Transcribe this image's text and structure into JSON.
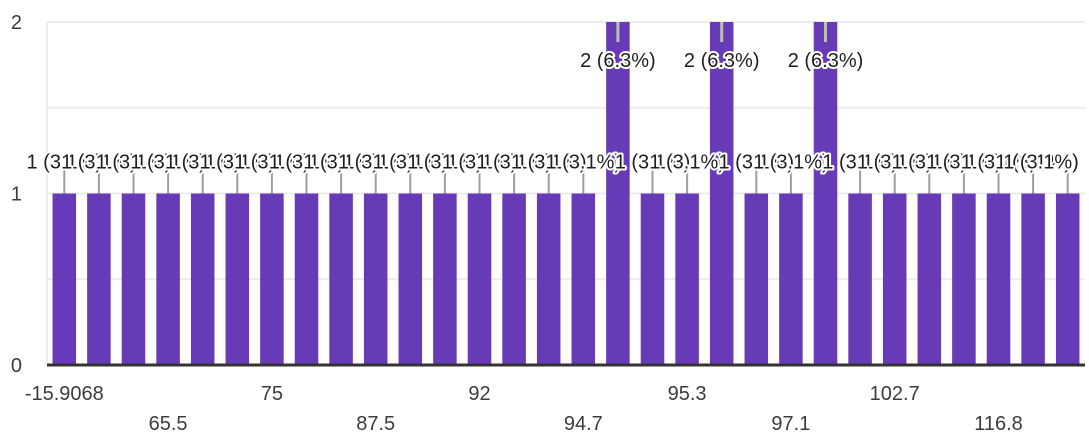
{
  "chart_data": {
    "type": "bar",
    "categories": [
      "-15.9068",
      "65.5",
      "65.5",
      "65.5",
      "65.5",
      "75",
      "75",
      "75",
      "87.5",
      "87.5",
      "92",
      "92",
      "92",
      "94.7",
      "94.7",
      "94.7",
      "94.7",
      "95.3",
      "95.3",
      "95.3",
      "97.1",
      "97.1",
      "97.1",
      "102.7",
      "102.7",
      "116.8",
      "116.8",
      "116.8",
      "116.8",
      "116.8"
    ],
    "x_tick_labels": [
      {
        "index": 0,
        "label": "-15.9068",
        "row": 0
      },
      {
        "index": 3,
        "label": "65.5",
        "row": 1
      },
      {
        "index": 6,
        "label": "75",
        "row": 0
      },
      {
        "index": 9,
        "label": "87.5",
        "row": 1
      },
      {
        "index": 12,
        "label": "92",
        "row": 0
      },
      {
        "index": 15,
        "label": "94.7",
        "row": 1
      },
      {
        "index": 18,
        "label": "95.3",
        "row": 0
      },
      {
        "index": 21,
        "label": "97.1",
        "row": 1
      },
      {
        "index": 24,
        "label": "102.7",
        "row": 0
      },
      {
        "index": 27,
        "label": "116.8",
        "row": 1
      }
    ],
    "values": [
      1,
      1,
      1,
      1,
      1,
      1,
      1,
      1,
      1,
      1,
      1,
      1,
      1,
      1,
      1,
      1,
      2,
      1,
      1,
      2,
      1,
      1,
      2,
      1,
      1,
      1,
      1,
      1,
      1,
      1
    ],
    "data_labels": [
      "1 (3.1%)",
      "1 (3.1%)",
      "1 (3.1%)",
      "1 (3.1%)",
      "1 (3.1%)",
      "1 (3.1%)",
      "1 (3.1%)",
      "1 (3.1%)",
      "1 (3.1%)",
      "1 (3.1%)",
      "1 (3.1%)",
      "1 (3.1%)",
      "1 (3.1%)",
      "1 (3.1%)",
      "1 (3.1%)",
      "1 (3.1%)",
      "2 (6.3%)",
      "1 (3.1%)",
      "1 (3.1%)",
      "2 (6.3%)",
      "1 (3.1%)",
      "1 (3.1%)",
      "2 (6.3%)",
      "1 (3.1%)",
      "1 (3.1%)",
      "1 (3.1%)",
      "1 (3.1%)",
      "1 (3.1%)",
      "1 (3.1%)",
      "1 (3.1%)"
    ],
    "y_ticks": [
      0,
      1,
      2
    ],
    "ylim": [
      0,
      2
    ],
    "title": "",
    "xlabel": "",
    "ylabel": "",
    "grid": true,
    "bar_color": "#673ab7",
    "grid_color": "#ececec",
    "axis_color": "#333333",
    "leader_color": "#9e9e9e"
  }
}
